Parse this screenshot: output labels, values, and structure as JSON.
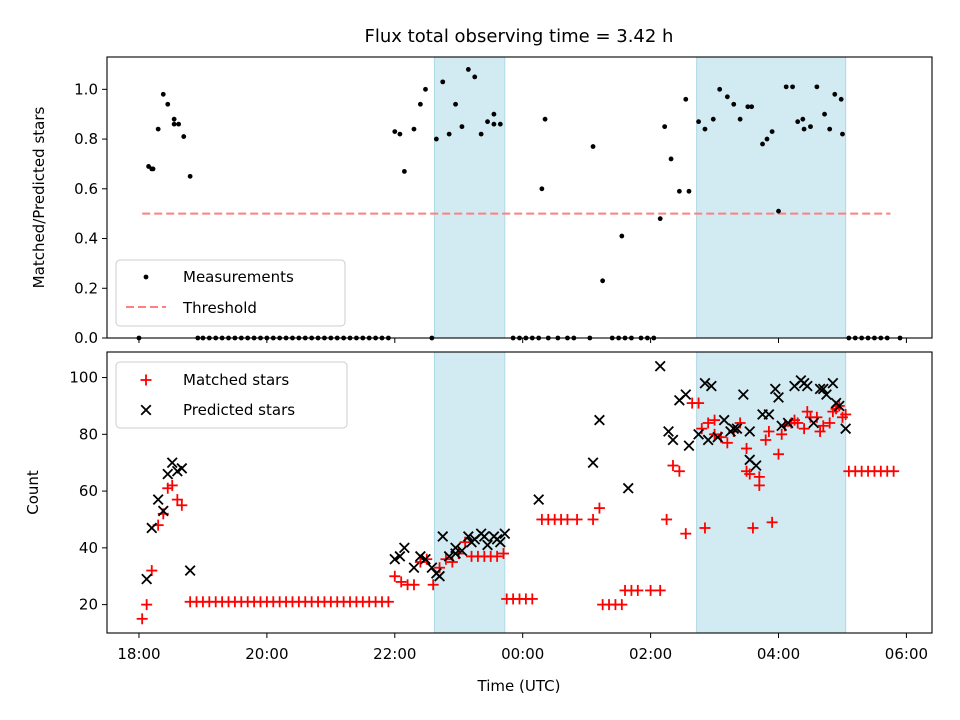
{
  "chart_data": {
    "type": "scatter",
    "title": "Flux total observing time = 3.42 h",
    "xlabel": "Time (UTC)",
    "x_units": "hours since 18:00 UTC",
    "xlim": [
      -0.5,
      12.4
    ],
    "xticks": [
      {
        "value": 0,
        "label": "18:00"
      },
      {
        "value": 2,
        "label": "20:00"
      },
      {
        "value": 4,
        "label": "22:00"
      },
      {
        "value": 6,
        "label": "00:00"
      },
      {
        "value": 8,
        "label": "02:00"
      },
      {
        "value": 10,
        "label": "04:00"
      },
      {
        "value": 12,
        "label": "06:00"
      }
    ],
    "shaded_intervals": [
      [
        4.62,
        5.72
      ],
      [
        8.72,
        11.05
      ]
    ],
    "panels": [
      {
        "id": "ratio",
        "ylabel": "Matched/Predicted stars",
        "ylim": [
          0,
          1.13
        ],
        "yticks": [
          {
            "value": 0.0,
            "label": "0.0"
          },
          {
            "value": 0.2,
            "label": "0.2"
          },
          {
            "value": 0.4,
            "label": "0.4"
          },
          {
            "value": 0.6,
            "label": "0.6"
          },
          {
            "value": 0.8,
            "label": "0.8"
          },
          {
            "value": 1.0,
            "label": "1.0"
          }
        ],
        "legend": [
          "Measurements",
          "Threshold"
        ],
        "threshold": {
          "name": "Threshold",
          "value": 0.5,
          "x_range": [
            0.05,
            11.75
          ],
          "color": "#ff7f7f"
        },
        "series": [
          {
            "name": "Measurements",
            "color": "#000000",
            "x": [
              0.0,
              0.15,
              0.22,
              0.3,
              0.38,
              0.45,
              0.55,
              0.62,
              0.7,
              0.8,
              4.0,
              4.08,
              4.15,
              4.3,
              4.4,
              4.48,
              4.65,
              4.75,
              4.85,
              4.95,
              5.05,
              5.15,
              5.25,
              5.35,
              5.45,
              5.55,
              5.65,
              6.35,
              7.1,
              7.25,
              8.15,
              8.22,
              8.32,
              8.45,
              8.55,
              8.75,
              8.85,
              8.98,
              9.08,
              9.2,
              9.3,
              9.4,
              9.52,
              9.58,
              9.75,
              9.82,
              9.9,
              10.0,
              10.12,
              10.22,
              10.3,
              10.38,
              10.5,
              10.6,
              10.72,
              10.8,
              10.88,
              10.98
            ],
            "y": [
              0.0,
              0.69,
              0.68,
              0.84,
              0.98,
              0.94,
              0.88,
              0.86,
              0.81,
              0.65,
              0.83,
              0.82,
              0.67,
              0.84,
              0.94,
              1.0,
              0.8,
              1.03,
              0.82,
              0.94,
              0.85,
              1.08,
              1.05,
              0.82,
              0.87,
              0.9,
              0.86,
              0.88,
              0.77,
              0.23,
              0.48,
              0.85,
              0.72,
              0.59,
              0.96,
              0.87,
              0.84,
              0.88,
              1.0,
              0.97,
              0.94,
              0.88,
              0.93,
              0.93,
              0.78,
              0.8,
              0.83,
              0.51,
              1.01,
              1.01,
              0.87,
              0.88,
              0.85,
              1.01,
              0.9,
              0.84,
              0.98,
              0.96
            ],
            "x_extra": [
              0.2,
              0.55,
              5.55,
              6.3,
              7.55,
              8.6,
              10.4,
              11.0
            ],
            "y_extra": [
              0.68,
              0.86,
              0.86,
              0.6,
              0.41,
              0.59,
              0.84,
              0.82
            ]
          }
        ],
        "zero_points_x": [
          0.92,
          1.0,
          1.1,
          1.2,
          1.3,
          1.4,
          1.5,
          1.6,
          1.7,
          1.8,
          1.9,
          2.0,
          2.1,
          2.2,
          2.3,
          2.4,
          2.5,
          2.6,
          2.7,
          2.8,
          2.9,
          3.0,
          3.1,
          3.2,
          3.3,
          3.4,
          3.5,
          3.6,
          3.7,
          3.8,
          3.9,
          4.58,
          5.85,
          5.95,
          6.05,
          6.15,
          6.25,
          6.4,
          6.55,
          6.7,
          6.8,
          7.05,
          7.4,
          7.5,
          7.6,
          7.7,
          7.85,
          7.95,
          8.05,
          11.1,
          11.2,
          11.3,
          11.4,
          11.5,
          11.6,
          11.7,
          11.9
        ]
      },
      {
        "id": "count",
        "ylabel": "Count",
        "ylim": [
          10,
          109
        ],
        "yticks": [
          {
            "value": 20,
            "label": "20"
          },
          {
            "value": 40,
            "label": "40"
          },
          {
            "value": 60,
            "label": "60"
          },
          {
            "value": 80,
            "label": "80"
          },
          {
            "value": 100,
            "label": "100"
          }
        ],
        "legend": [
          "Matched stars",
          "Predicted stars"
        ],
        "series": [
          {
            "name": "Matched stars",
            "marker": "+",
            "color": "#ff0000",
            "x": [
              0.05,
              0.12,
              0.2,
              0.3,
              0.38,
              0.45,
              0.52,
              0.6,
              0.67,
              0.8,
              0.9,
              1.0,
              1.1,
              1.2,
              1.3,
              1.4,
              1.5,
              1.6,
              1.7,
              1.8,
              1.9,
              2.0,
              2.1,
              2.2,
              2.3,
              2.4,
              2.5,
              2.6,
              2.7,
              2.8,
              2.9,
              3.0,
              3.1,
              3.2,
              3.3,
              3.4,
              3.5,
              3.6,
              3.7,
              3.8,
              3.9,
              4.0,
              4.1,
              4.2,
              4.3,
              4.4,
              4.5,
              4.6,
              4.7,
              4.8,
              4.9,
              5.0,
              5.1,
              5.2,
              5.3,
              5.4,
              5.5,
              5.6,
              5.7,
              5.75,
              5.85,
              5.95,
              6.05,
              6.15,
              6.3,
              6.4,
              6.5,
              6.6,
              6.7,
              6.85,
              7.1,
              7.2,
              7.25,
              7.35,
              7.45,
              7.55,
              7.6,
              7.7,
              7.8,
              8.0,
              8.15,
              8.25,
              8.35,
              8.45,
              8.55,
              8.65,
              8.75,
              8.85,
              9.0,
              9.1,
              9.2,
              9.3,
              9.4,
              9.5,
              9.6,
              9.7,
              9.8,
              9.9,
              10.0,
              10.1,
              10.2,
              10.3,
              10.4,
              10.5,
              10.6,
              10.7,
              10.8,
              10.9,
              11.0,
              11.1,
              11.2,
              11.3,
              11.4,
              11.5,
              11.6,
              11.7,
              11.8
            ],
            "y": [
              15,
              20,
              32,
              48,
              52,
              61,
              62,
              57,
              55,
              21,
              21,
              21,
              21,
              21,
              21,
              21,
              21,
              21,
              21,
              21,
              21,
              21,
              21,
              21,
              21,
              21,
              21,
              21,
              21,
              21,
              21,
              21,
              21,
              21,
              21,
              21,
              21,
              21,
              21,
              21,
              21,
              30,
              28,
              27,
              27,
              35,
              36,
              27,
              33,
              36,
              35,
              38,
              42,
              37,
              37,
              37,
              37,
              37,
              38,
              22,
              22,
              22,
              22,
              22,
              50,
              50,
              50,
              50,
              50,
              50,
              50,
              54,
              20,
              20,
              20,
              20,
              25,
              25,
              25,
              25,
              25,
              50,
              69,
              67,
              45,
              91,
              91,
              47,
              85,
              79,
              77,
              81,
              84,
              67,
              47,
              62,
              78,
              49,
              73,
              83,
              84,
              84,
              82,
              86,
              86,
              83,
              84,
              89,
              86,
              67,
              67,
              67,
              67,
              67,
              67,
              67,
              67
            ],
            "x_extra": [
              8.8,
              8.9,
              9.0,
              9.5,
              9.55,
              9.7,
              9.85,
              10.05,
              10.25,
              10.45,
              10.65,
              10.85,
              10.95,
              11.05
            ],
            "y_extra": [
              82,
              84,
              80,
              75,
              66,
              65,
              81,
              80,
              85,
              88,
              81,
              88,
              90,
              87
            ]
          },
          {
            "name": "Predicted stars",
            "marker": "x",
            "color": "#000000",
            "x": [
              0.12,
              0.2,
              0.3,
              0.38,
              0.45,
              0.52,
              0.6,
              0.67,
              0.8,
              4.0,
              4.08,
              4.15,
              4.3,
              4.4,
              4.48,
              4.58,
              4.65,
              4.75,
              4.85,
              4.95,
              5.05,
              5.15,
              5.25,
              5.35,
              5.45,
              5.55,
              5.65,
              5.72,
              6.25,
              7.1,
              7.2,
              7.65,
              8.15,
              8.28,
              8.35,
              8.45,
              8.55,
              8.75,
              8.85,
              8.95,
              9.05,
              9.15,
              9.25,
              9.35,
              9.45,
              9.55,
              9.65,
              9.75,
              9.85,
              9.95,
              10.05,
              10.15,
              10.25,
              10.35,
              10.45,
              10.55,
              10.65,
              10.75,
              10.85,
              10.95,
              11.05
            ],
            "y": [
              29,
              47,
              57,
              53,
              66,
              70,
              67,
              68,
              32,
              36,
              37,
              40,
              33,
              37,
              36,
              33,
              31,
              44,
              37,
              40,
              39,
              44,
              43,
              45,
              41,
              44,
              42,
              45,
              57,
              70,
              85,
              61,
              104,
              81,
              78,
              92,
              94,
              80,
              98,
              97,
              79,
              85,
              81,
              82,
              94,
              71,
              69,
              87,
              87,
              96,
              83,
              84,
              97,
              99,
              97,
              84,
              96,
              94,
              98,
              90,
              82
            ],
            "x_extra": [
              4.7,
              4.95,
              5.2,
              5.4,
              5.6,
              8.6,
              8.9,
              9.3,
              9.55,
              10.0,
              10.4,
              10.7,
              10.9
            ],
            "y_extra": [
              30,
              38,
              42,
              44,
              43,
              76,
              78,
              82,
              81,
              93,
              98,
              96,
              91
            ]
          }
        ]
      }
    ]
  },
  "colors": {
    "shade": "#add8e6",
    "matched": "#ff0000",
    "predicted": "#000000",
    "measurement": "#000000",
    "threshold": "#ff7f7f"
  }
}
